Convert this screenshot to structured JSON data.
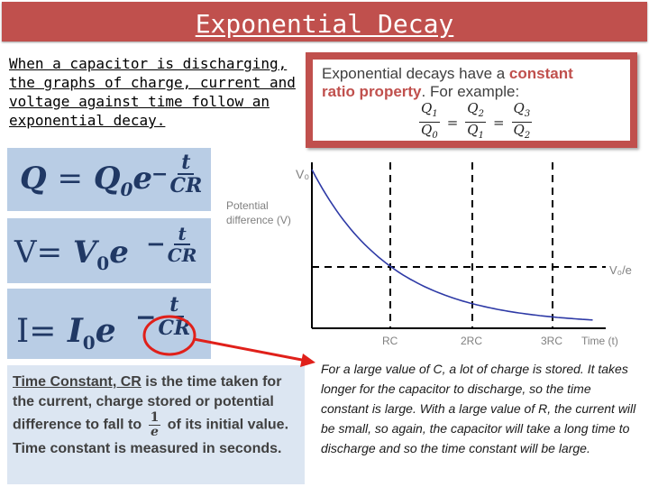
{
  "slide": {
    "title": "Exponential Decay",
    "intro": "When a capacitor is discharging, the graphs of charge, current and voltage against time follow an exponential decay.",
    "ratio_box": {
      "line1_pre": "Exponential decays have a ",
      "line1_highlight": "constant",
      "line2_highlight": "ratio property",
      "line2_post": ". For example:",
      "fractions": [
        {
          "num": "Q",
          "num_sub": "1",
          "den": "Q",
          "den_sub": "0"
        },
        {
          "num": "Q",
          "num_sub": "2",
          "den": "Q",
          "den_sub": "1"
        },
        {
          "num": "Q",
          "num_sub": "3",
          "den": "Q",
          "den_sub": "2"
        }
      ],
      "equals": "="
    },
    "equations": {
      "charge": {
        "lhs": "Q",
        "eq": "=",
        "coef": "Q",
        "sub": "0",
        "base": "e",
        "minus": "−",
        "num": "t",
        "den": "CR"
      },
      "voltage": {
        "lhs": "V",
        "eq": "=",
        "coef": "V",
        "sub": "0",
        "base": "e",
        "minus": "−",
        "num": "t",
        "den": "CR"
      },
      "current": {
        "lhs": "I",
        "eq": "=",
        "coef": "I",
        "sub": "0",
        "base": "e",
        "minus": "−",
        "num": "t",
        "den": "CR"
      }
    },
    "time_constant": {
      "term": "Time Constant, CR",
      "text1": " is the time taken for the current, charge stored or potential difference to fall to ",
      "frac_num": "1",
      "frac_den": "e",
      "text2": " of its initial value. Time constant is measured in seconds."
    },
    "right_paragraph": "For a large value of C, a lot of charge is stored. It takes longer for the capacitor to discharge, so the time constant is large. With a large value of R, the current will be small, so again, the capacitor will take a long time to discharge and so the time constant will be large."
  },
  "colors": {
    "title_bg": "#c0504d",
    "accent_red": "#c0504d",
    "curve": "#2e3aa6",
    "eq_bg": "#b9cde5",
    "eq_text": "#203864",
    "info_bg": "#dce6f2",
    "arrow": "#e0201a"
  },
  "chart_data": {
    "type": "line",
    "ylabel": "Potential difference (V)",
    "xlabel": "Time (t)",
    "y_start_label": "V₀",
    "y_level_label": "V₀/e",
    "x_ticks": [
      "RC",
      "2RC",
      "3RC"
    ],
    "series": [
      {
        "x_in_RC": [
          0,
          0.5,
          1,
          1.5,
          2,
          2.5,
          3,
          3.5
        ],
        "v_over_v0": [
          1,
          0.607,
          0.368,
          0.223,
          0.135,
          0.082,
          0.05,
          0.03
        ]
      }
    ],
    "grid": "dashed vertical at RC, 2RC, 3RC; dashed horizontal at V₀/e"
  }
}
